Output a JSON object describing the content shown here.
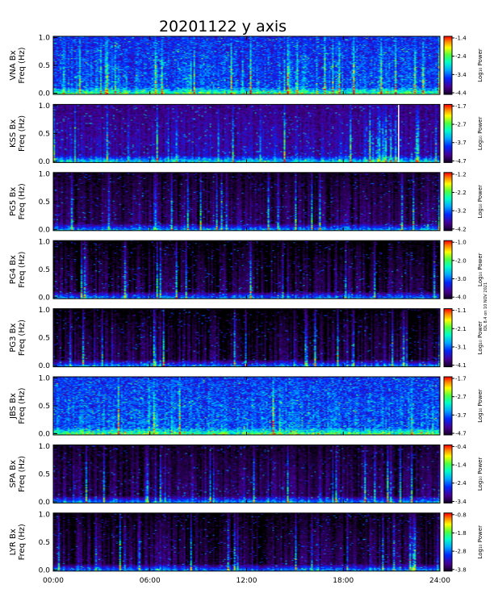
{
  "chart_data": {
    "type": "heatmap",
    "title": "20201122  y  axis",
    "xlabel": "",
    "x_ticks": [
      "00:00",
      "06:00",
      "12:00",
      "18:00",
      "24:00"
    ],
    "xlim_hours": [
      0,
      24
    ],
    "y_ticks": [
      "0.0",
      "0.5",
      "1.0"
    ],
    "ylim_hz": [
      0,
      1.0
    ],
    "colorbar_label": "Log₁₀ Power",
    "side_note": "IDL 8.4 on 10 NOV 2021",
    "panels": [
      {
        "station": "VNA",
        "ylabel_top": "VNA Bx",
        "ylabel_bottom": "Freq (Hz)",
        "cbar_ticks": [
          "-1.4",
          "-2.4",
          "-3.4",
          "-4.4"
        ],
        "background": 0.28,
        "gaps_hours": []
      },
      {
        "station": "KSS",
        "ylabel_top": "KSS Bx",
        "ylabel_bottom": "Freq (Hz)",
        "cbar_ticks": [
          "-1.7",
          "-2.7",
          "-3.7",
          "-4.7"
        ],
        "background": 0.14,
        "gaps_hours": [
          21.4
        ]
      },
      {
        "station": "PG5",
        "ylabel_top": "PG5 Bx",
        "ylabel_bottom": "Freq (Hz)",
        "cbar_ticks": [
          "-1.2",
          "-2.2",
          "-3.2",
          "-4.2"
        ],
        "background": 0.05,
        "gaps_hours": []
      },
      {
        "station": "PG4",
        "ylabel_top": "PG4 Bx",
        "ylabel_bottom": "Freq (Hz)",
        "cbar_ticks": [
          "-1.0",
          "-2.0",
          "-3.0",
          "-4.0"
        ],
        "background": 0.03,
        "gaps_hours": []
      },
      {
        "station": "PG3",
        "ylabel_top": "PG3 Bx",
        "ylabel_bottom": "Freq (Hz)",
        "cbar_ticks": [
          "-1.1",
          "-2.1",
          "-3.1",
          "-4.1"
        ],
        "background": 0.03,
        "gaps_hours": []
      },
      {
        "station": "JBS",
        "ylabel_top": "JBS Bx",
        "ylabel_bottom": "Freq (Hz)",
        "cbar_ticks": [
          "-1.7",
          "-2.7",
          "-3.7",
          "-4.7"
        ],
        "background": 0.3,
        "gaps_hours": []
      },
      {
        "station": "SPA",
        "ylabel_top": "SPA Bx",
        "ylabel_bottom": "Freq (Hz)",
        "cbar_ticks": [
          "-0.4",
          "-1.4",
          "-2.4",
          "-3.4"
        ],
        "background": 0.05,
        "gaps_hours": []
      },
      {
        "station": "LYR",
        "ylabel_top": "LYR Bx",
        "ylabel_bottom": "Freq (Hz)",
        "cbar_ticks": [
          "-0.8",
          "-1.8",
          "-2.8",
          "-3.8"
        ],
        "background": 0.04,
        "gaps_hours": []
      }
    ]
  }
}
